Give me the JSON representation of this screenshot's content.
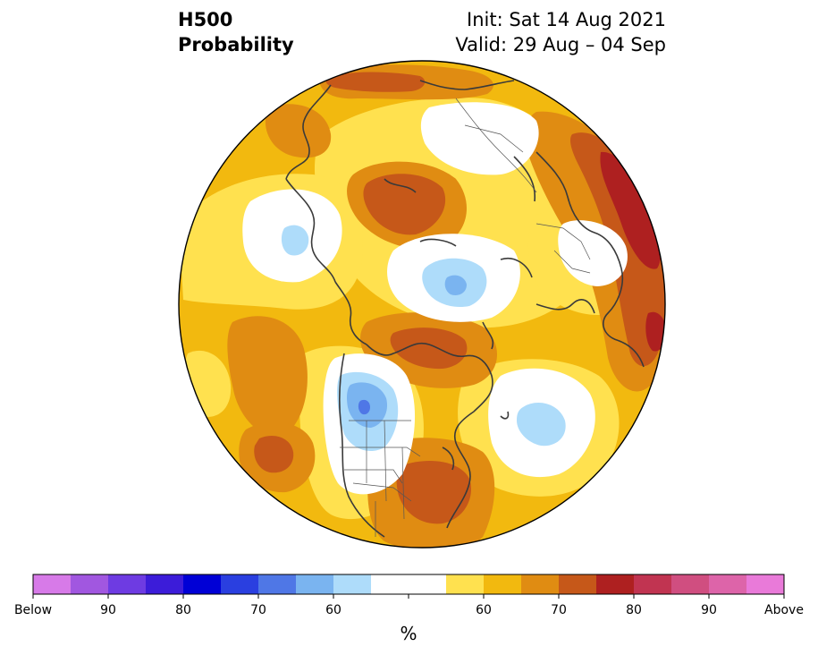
{
  "title": {
    "variable": "H500",
    "product": "Probability",
    "init": "Init: Sat 14 Aug 2021",
    "valid": "Valid: 29 Aug – 04 Sep"
  },
  "map": {
    "projection": "north-polar-stereographic",
    "features": [
      "below-normal-west-north-america",
      "below-normal-north-atlantic",
      "below-normal-arctic-ocean",
      "above-normal-hudson-bay",
      "above-normal-south-central-us",
      "above-normal-eastern-europe",
      "above-normal-east-siberia"
    ],
    "fill_colors": {
      "white": "#ffffff",
      "light_blue": "#aedcfa",
      "blue_60": "#7ab4f0",
      "blue_70": "#4f77e6",
      "yellow_55": "#ffe14f",
      "yellow_60": "#f2b90f",
      "orange_65": "#e08c12",
      "orange_70": "#c65819",
      "red_75": "#ae2020"
    },
    "coastline_color": "#3a3a3a"
  },
  "colorbar": {
    "colors": [
      "#d77ae8",
      "#a157e0",
      "#6e3be2",
      "#3c1cd9",
      "#0000d6",
      "#2a3fe0",
      "#4f77e6",
      "#7ab4f0",
      "#aedcfa",
      "#ffffff",
      "#ffffff",
      "#ffe14f",
      "#f2b90f",
      "#e08c12",
      "#c65819",
      "#ae2020",
      "#c13451",
      "#d04e80",
      "#dd64a9",
      "#e97ad9"
    ],
    "tick_labels": [
      "Below",
      "90",
      "80",
      "70",
      "60",
      "60",
      "70",
      "80",
      "90",
      "Above"
    ],
    "unit": "%"
  }
}
